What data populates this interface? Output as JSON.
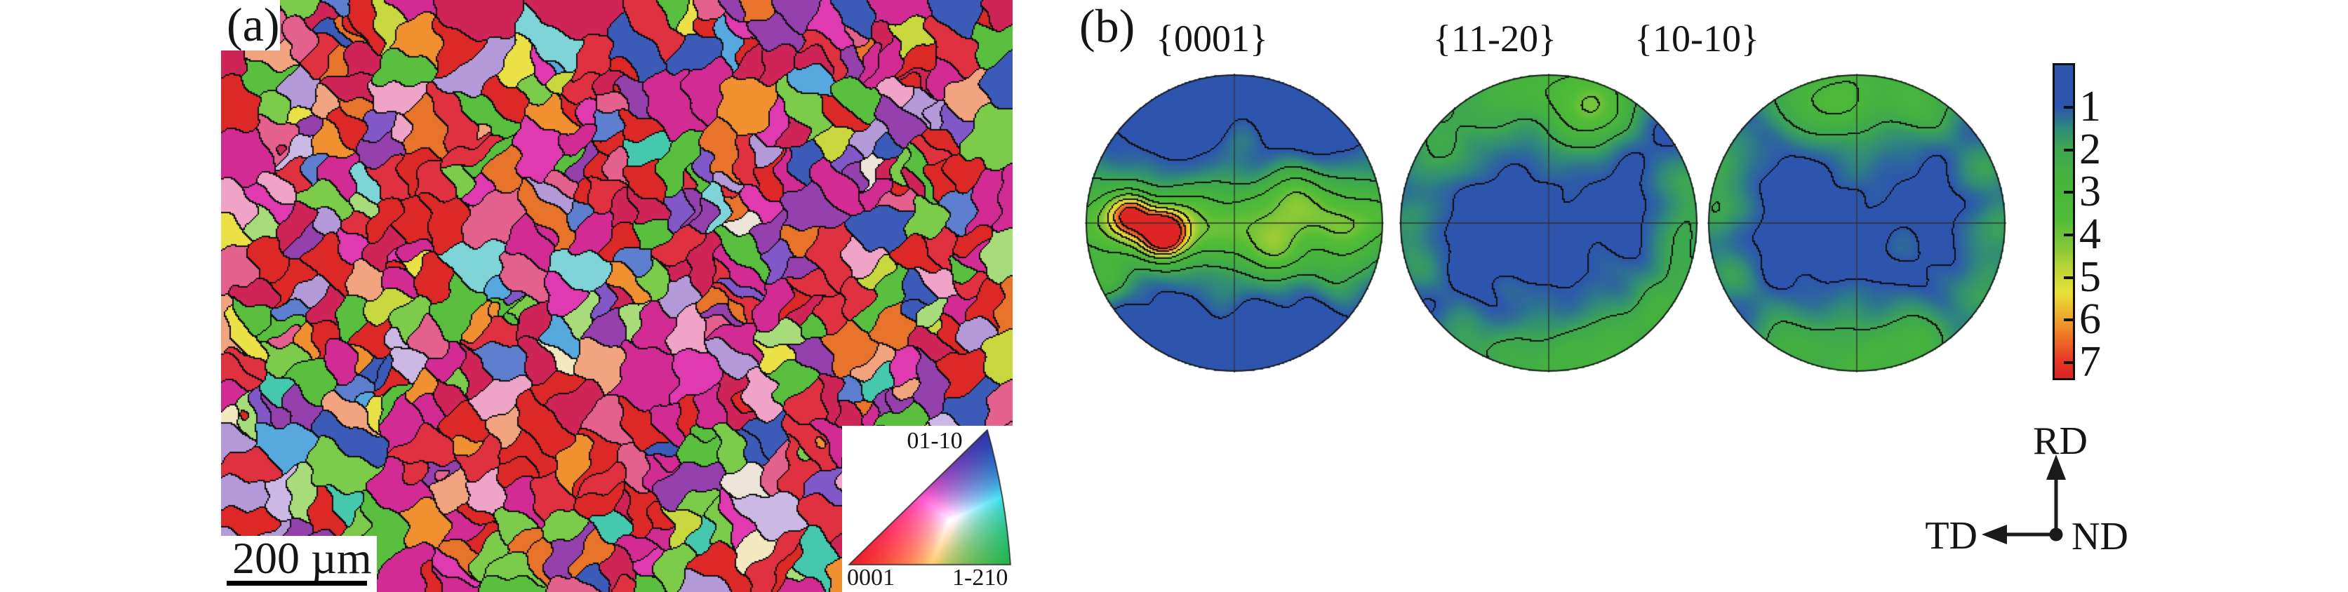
{
  "figure_labels": {
    "panel_a": "(a)",
    "panel_b": "(b)"
  },
  "panel_a": {
    "type": "EBSD inverse pole figure orientation map",
    "scale_bar_label": "200 µm",
    "ipf_key": {
      "top": "01-10",
      "bottom_left": "0001",
      "bottom_right": "1-210",
      "corner_colors": {
        "c0001": "#ed1c24",
        "c0110": "#2732a8",
        "c1210": "#22b14c"
      }
    },
    "grain_boundary_color": "#101010",
    "grain_count": 520,
    "random_seed": 20240517,
    "grain_palette": [
      {
        "c": "#dd2828",
        "w": 13
      },
      {
        "c": "#e03140",
        "w": 8
      },
      {
        "c": "#cf2458",
        "w": 8
      },
      {
        "c": "#d22c94",
        "w": 9
      },
      {
        "c": "#e03ab0",
        "w": 4
      },
      {
        "c": "#e4618e",
        "w": 5
      },
      {
        "c": "#efa3c6",
        "w": 2
      },
      {
        "c": "#e8742b",
        "w": 5
      },
      {
        "c": "#f09030",
        "w": 3
      },
      {
        "c": "#f2a480",
        "w": 2
      },
      {
        "c": "#e9e146",
        "w": 2
      },
      {
        "c": "#c8d83e",
        "w": 2
      },
      {
        "c": "#5abf3e",
        "w": 7
      },
      {
        "c": "#7ccb4a",
        "w": 5
      },
      {
        "c": "#a8dc7a",
        "w": 2
      },
      {
        "c": "#46c8ae",
        "w": 1.5
      },
      {
        "c": "#7fd4d8",
        "w": 1
      },
      {
        "c": "#58a8e0",
        "w": 1.5
      },
      {
        "c": "#3c5ab8",
        "w": 3
      },
      {
        "c": "#5e7fd0",
        "w": 1.5
      },
      {
        "c": "#9440ad",
        "w": 4
      },
      {
        "c": "#8258c8",
        "w": 2
      },
      {
        "c": "#b49ad8",
        "w": 2.5
      },
      {
        "c": "#cbb8e4",
        "w": 1.5
      },
      {
        "c": "#f2e8c0",
        "w": 0.8
      },
      {
        "c": "#ece4d8",
        "w": 0.5
      }
    ]
  },
  "panel_b": {
    "axes_legend": {
      "up": "RD",
      "left": "TD",
      "right": "ND"
    },
    "colorbar": {
      "orientation": "vertical",
      "tick_labels": [
        "1",
        "2",
        "3",
        "4",
        "5",
        "6",
        "7"
      ]
    }
  },
  "intensity_range": [
    1,
    7
  ],
  "contour_levels": [
    1,
    2,
    3,
    4,
    5,
    6,
    7
  ],
  "colormap_stops": [
    [
      0.0,
      45,
      85,
      174
    ],
    [
      1.0,
      45,
      85,
      174
    ],
    [
      1.45,
      47,
      135,
      125
    ],
    [
      1.9,
      60,
      165,
      85
    ],
    [
      2.6,
      68,
      178,
      62
    ],
    [
      3.6,
      80,
      188,
      55
    ],
    [
      4.3,
      135,
      200,
      55
    ],
    [
      4.9,
      200,
      215,
      55
    ],
    [
      5.35,
      232,
      225,
      58
    ],
    [
      5.9,
      238,
      170,
      45
    ],
    [
      6.4,
      238,
      115,
      38
    ],
    [
      6.9,
      230,
      60,
      40
    ],
    [
      7.3,
      223,
      37,
      35
    ],
    [
      9.0,
      223,
      37,
      35
    ]
  ],
  "chart_data": [
    {
      "type": "heatmap",
      "title": "{0001}",
      "projection": "stereographic pole figure",
      "intensity_scale": [
        1,
        7
      ],
      "pattern": "basal poles form a horizontal band through the center; maximum ~7 located left of center on the horizontal axis",
      "base": 0.7,
      "blobs": [
        [
          -1.05,
          0.02,
          1.6,
          0.3
        ],
        [
          -0.82,
          -0.02,
          1.5,
          0.18
        ],
        [
          -0.695,
          -0.045,
          3.9,
          0.095
        ],
        [
          -0.474,
          0.075,
          6.3,
          0.1
        ],
        [
          -0.55,
          0.06,
          1.5,
          0.2
        ],
        [
          -0.3,
          0.0,
          1.6,
          0.18
        ],
        [
          -0.05,
          0.01,
          1.7,
          0.24
        ],
        [
          0.2,
          0.07,
          1.8,
          0.18
        ],
        [
          0.42,
          -0.18,
          2.4,
          0.15
        ],
        [
          0.62,
          0.04,
          1.8,
          0.18
        ],
        [
          0.86,
          -0.02,
          1.6,
          0.2
        ],
        [
          1.05,
          -0.04,
          1.2,
          0.22
        ],
        [
          0.3,
          0.24,
          1.4,
          0.14
        ],
        [
          -0.87,
          0.4,
          1.2,
          0.1
        ],
        [
          0.05,
          -0.58,
          0.45,
          0.11
        ],
        [
          0.72,
          0.38,
          0.9,
          0.13
        ],
        [
          -0.12,
          0.52,
          0.3,
          0.12
        ],
        [
          0.95,
          -0.52,
          0.4,
          0.1
        ]
      ]
    },
    {
      "type": "heatmap",
      "title": "{11-20}",
      "projection": "stereographic pole figure",
      "intensity_scale": [
        1,
        7
      ],
      "pattern": "intensity ~2 concentrated near the rim at top and bottom, blue (<1) interior",
      "base": 0.78,
      "blobs": [
        [
          0.02,
          -0.97,
          1.6,
          0.28
        ],
        [
          -0.38,
          -0.85,
          1.2,
          0.2
        ],
        [
          0.4,
          -0.86,
          1.5,
          0.2
        ],
        [
          0.26,
          -0.7,
          1.5,
          0.16
        ],
        [
          -0.7,
          -0.62,
          0.9,
          0.16
        ],
        [
          0.95,
          -0.25,
          1.2,
          0.16
        ],
        [
          0.93,
          0.1,
          1.1,
          0.14
        ],
        [
          0.88,
          0.42,
          1.2,
          0.16
        ],
        [
          0.7,
          0.62,
          1.1,
          0.14
        ],
        [
          0.12,
          0.96,
          1.6,
          0.24
        ],
        [
          0.48,
          0.84,
          1.3,
          0.18
        ],
        [
          -0.3,
          0.92,
          1.1,
          0.18
        ],
        [
          -0.62,
          0.74,
          0.9,
          0.14
        ],
        [
          -0.95,
          -0.05,
          0.8,
          0.14
        ],
        [
          -0.88,
          0.28,
          0.9,
          0.14
        ],
        [
          -0.8,
          -0.4,
          0.8,
          0.14
        ],
        [
          -0.45,
          -0.35,
          0.35,
          0.12
        ],
        [
          0.35,
          0.35,
          0.3,
          0.12
        ],
        [
          -0.25,
          0.45,
          0.3,
          0.1
        ],
        [
          0.1,
          -0.35,
          0.25,
          0.1
        ]
      ]
    },
    {
      "type": "heatmap",
      "title": "{10-10}",
      "projection": "stereographic pole figure",
      "intensity_scale": [
        1,
        7
      ],
      "pattern": "intensity ~2 along top and bottom rim and at left/right edges, blue (<1) interior",
      "base": 0.78,
      "blobs": [
        [
          0.05,
          -0.98,
          1.8,
          0.3
        ],
        [
          0.48,
          -0.8,
          1.3,
          0.18
        ],
        [
          -0.42,
          -0.84,
          1.2,
          0.18
        ],
        [
          -0.15,
          -0.75,
          1.0,
          0.14
        ],
        [
          0.0,
          0.97,
          1.8,
          0.28
        ],
        [
          -0.5,
          0.8,
          1.3,
          0.18
        ],
        [
          0.45,
          0.82,
          1.4,
          0.18
        ],
        [
          -0.96,
          -0.12,
          1.3,
          0.16
        ],
        [
          -0.85,
          0.35,
          1.0,
          0.14
        ],
        [
          -0.88,
          -0.45,
          0.9,
          0.14
        ],
        [
          0.97,
          0.05,
          1.1,
          0.15
        ],
        [
          0.88,
          -0.38,
          1.0,
          0.14
        ],
        [
          0.85,
          0.45,
          1.0,
          0.14
        ],
        [
          0.05,
          -0.35,
          0.3,
          0.12
        ],
        [
          -0.3,
          0.2,
          0.25,
          0.1
        ],
        [
          0.3,
          0.15,
          0.25,
          0.1
        ]
      ]
    }
  ]
}
